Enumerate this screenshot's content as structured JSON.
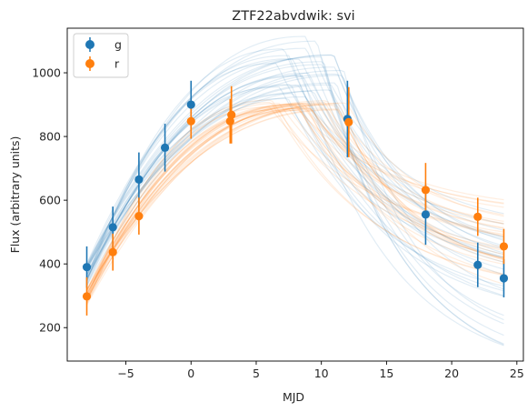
{
  "chart_data": {
    "type": "scatter",
    "title": "ZTF22abvdwik: svi",
    "xlabel": "MJD",
    "ylabel": "Flux (arbitrary units)",
    "xlim": [
      -9.5,
      25.5
    ],
    "ylim": [
      95,
      1140
    ],
    "xticks": [
      -5,
      0,
      5,
      10,
      15,
      20,
      25
    ],
    "yticks": [
      200,
      400,
      600,
      800,
      1000
    ],
    "legend_position": "top-left",
    "colors": {
      "g": "#1f77b4",
      "r": "#ff7f0e"
    },
    "series": [
      {
        "name": "g",
        "color": "#1f77b4",
        "points": [
          {
            "x": -8,
            "y": 390,
            "err": 65
          },
          {
            "x": -6,
            "y": 515,
            "err": 65
          },
          {
            "x": -4,
            "y": 665,
            "err": 85
          },
          {
            "x": -2,
            "y": 765,
            "err": 75
          },
          {
            "x": 0,
            "y": 900,
            "err": 75
          },
          {
            "x": 12,
            "y": 855,
            "err": 120
          },
          {
            "x": 18,
            "y": 555,
            "err": 95
          },
          {
            "x": 22,
            "y": 397,
            "err": 70
          },
          {
            "x": 24,
            "y": 355,
            "err": 60
          }
        ]
      },
      {
        "name": "r",
        "color": "#ff7f0e",
        "points": [
          {
            "x": -8,
            "y": 298,
            "err": 60
          },
          {
            "x": -6,
            "y": 437,
            "err": 58
          },
          {
            "x": -4,
            "y": 550,
            "err": 58
          },
          {
            "x": 0,
            "y": 848,
            "err": 55
          },
          {
            "x": 3,
            "y": 848,
            "err": 70
          },
          {
            "x": 3.1,
            "y": 868,
            "err": 90
          },
          {
            "x": 12.1,
            "y": 845,
            "err": 110
          },
          {
            "x": 18,
            "y": 632,
            "err": 85
          },
          {
            "x": 22,
            "y": 548,
            "err": 60
          },
          {
            "x": 24,
            "y": 455,
            "err": 55
          }
        ]
      }
    ],
    "model_curves": {
      "g": {
        "count": 30,
        "x_start": -8,
        "x_end": 24,
        "rise_to_peak": [
          900,
          1120
        ],
        "peak_x": [
          6,
          12
        ],
        "end_values": [
          140,
          560
        ]
      },
      "r": {
        "count": 30,
        "x_start": -8,
        "x_end": 24,
        "rise_to_peak": [
          880,
          915
        ],
        "peak_x": [
          6,
          12
        ],
        "end_values": [
          330,
          610
        ]
      }
    }
  }
}
